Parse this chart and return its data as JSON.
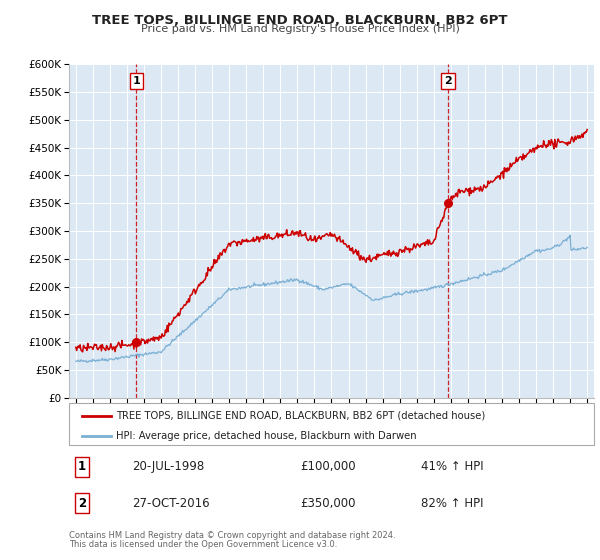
{
  "title": "TREE TOPS, BILLINGE END ROAD, BLACKBURN, BB2 6PT",
  "subtitle": "Price paid vs. HM Land Registry's House Price Index (HPI)",
  "background_color": "#ffffff",
  "plot_bg_color": "#dce9f5",
  "grid_color": "#ffffff",
  "ylim": [
    0,
    600000
  ],
  "yticks": [
    0,
    50000,
    100000,
    150000,
    200000,
    250000,
    300000,
    350000,
    400000,
    450000,
    500000,
    550000,
    600000
  ],
  "red_line_color": "#cc0000",
  "blue_line_color": "#7bafd4",
  "sale1_year": 1998.54,
  "sale1_price": 100000,
  "sale1_label": "1",
  "sale1_date": "20-JUL-1998",
  "sale1_price_str": "£100,000",
  "sale1_hpi": "41% ↑ HPI",
  "sale2_year": 2016.83,
  "sale2_price": 350000,
  "sale2_label": "2",
  "sale2_date": "27-OCT-2016",
  "sale2_price_str": "£350,000",
  "sale2_hpi": "82% ↑ HPI",
  "legend_line1": "TREE TOPS, BILLINGE END ROAD, BLACKBURN, BB2 6PT (detached house)",
  "legend_line2": "HPI: Average price, detached house, Blackburn with Darwen",
  "footer1": "Contains HM Land Registry data © Crown copyright and database right 2024.",
  "footer2": "This data is licensed under the Open Government Licence v3.0."
}
